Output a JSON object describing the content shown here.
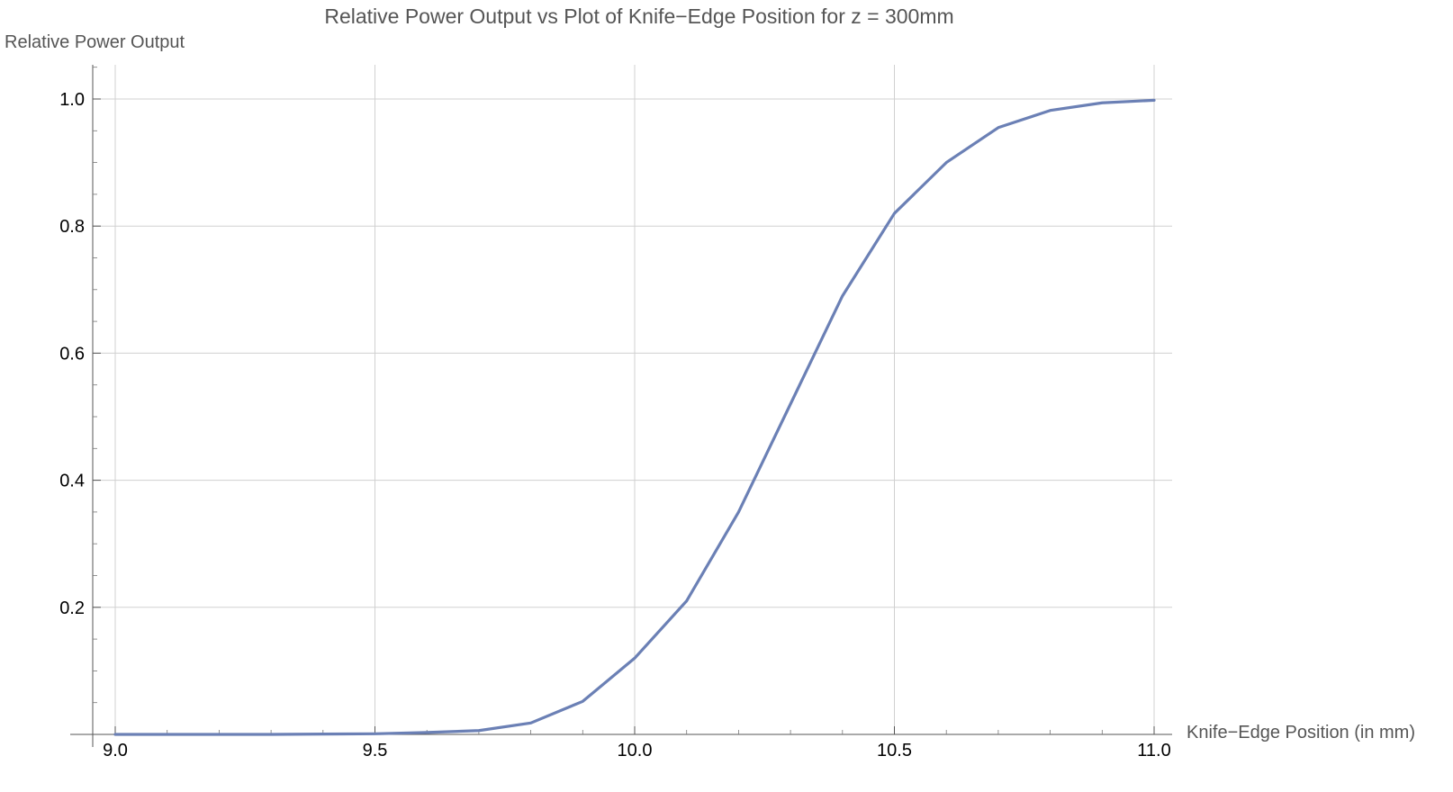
{
  "chart_data": {
    "type": "line",
    "title": "Relative Power Output vs Plot of Knife−Edge Position for z = 300mm",
    "xlabel": "Knife−Edge Position (in mm)",
    "ylabel": "Relative Power Output",
    "xlim": [
      9.0,
      11.0
    ],
    "ylim": [
      0.0,
      1.0
    ],
    "x_ticks": [
      9.0,
      9.5,
      10.0,
      10.5,
      11.0
    ],
    "x_tick_labels": [
      "9.0",
      "9.5",
      "10.0",
      "10.5",
      "11.0"
    ],
    "y_ticks": [
      0.2,
      0.4,
      0.6,
      0.8,
      1.0
    ],
    "y_tick_labels": [
      "0.2",
      "0.4",
      "0.6",
      "0.8",
      "1.0"
    ],
    "grid": true,
    "series": [
      {
        "color": "#6b80b5",
        "x": [
          9.0,
          9.1,
          9.2,
          9.3,
          9.4,
          9.5,
          9.6,
          9.7,
          9.8,
          9.9,
          10.0,
          10.1,
          10.2,
          10.3,
          10.4,
          10.5,
          10.6,
          10.7,
          10.8,
          10.9,
          11.0
        ],
        "y": [
          0.0,
          0.0,
          0.0,
          0.0,
          0.0005,
          0.001,
          0.003,
          0.006,
          0.018,
          0.052,
          0.12,
          0.21,
          0.35,
          0.52,
          0.69,
          0.82,
          0.9,
          0.955,
          0.982,
          0.994,
          0.998
        ]
      }
    ]
  }
}
